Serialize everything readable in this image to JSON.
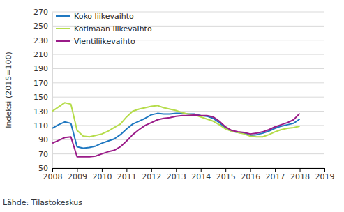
{
  "chart_data": {
    "type": "line",
    "y_label": "Indeksi (2015=100)",
    "source": "Lähde: Tilastokeskus",
    "x": [
      2008,
      2008.25,
      2008.5,
      2008.75,
      2009,
      2009.25,
      2009.5,
      2009.75,
      2010,
      2010.25,
      2010.5,
      2010.75,
      2011,
      2011.25,
      2011.5,
      2011.75,
      2012,
      2012.25,
      2012.5,
      2012.75,
      2013,
      2013.25,
      2013.5,
      2013.75,
      2014,
      2014.25,
      2014.5,
      2014.75,
      2015,
      2015.25,
      2015.5,
      2015.75,
      2016,
      2016.25,
      2016.5,
      2016.75,
      2017,
      2017.25,
      2017.5,
      2017.75,
      2018
    ],
    "series": [
      {
        "name": "Koko liikevaihto",
        "color": "#1f78c1",
        "values": [
          106,
          111,
          115,
          113,
          80,
          78,
          79,
          81,
          85,
          88,
          91,
          97,
          105,
          112,
          116,
          120,
          125,
          127,
          126,
          126,
          127,
          127,
          126,
          126,
          124,
          123,
          120,
          114,
          106,
          102,
          100,
          99,
          96,
          97,
          99,
          102,
          106,
          109,
          111,
          113,
          119
        ]
      },
      {
        "name": "Kotimaan liikevaihto",
        "color": "#b5dc4a",
        "values": [
          130,
          136,
          142,
          140,
          103,
          95,
          94,
          96,
          98,
          102,
          107,
          112,
          122,
          130,
          133,
          135,
          137,
          138,
          135,
          133,
          131,
          128,
          126,
          125,
          122,
          119,
          116,
          111,
          105,
          102,
          100,
          98,
          95,
          94,
          94,
          97,
          101,
          104,
          106,
          107,
          109
        ]
      },
      {
        "name": "Vientiliikevaihto",
        "color": "#9a1b88",
        "values": [
          85,
          89,
          93,
          94,
          66,
          66,
          66,
          67,
          70,
          73,
          75,
          80,
          88,
          97,
          104,
          110,
          114,
          118,
          120,
          121,
          123,
          124,
          124,
          125,
          124,
          124,
          122,
          116,
          108,
          103,
          101,
          100,
          98,
          99,
          101,
          104,
          108,
          111,
          114,
          118,
          127
        ]
      }
    ],
    "xlim": [
      2008,
      2019
    ],
    "xticks": [
      2008,
      2009,
      2010,
      2011,
      2012,
      2013,
      2014,
      2015,
      2016,
      2017,
      2018,
      2019
    ],
    "ylim": [
      50,
      270
    ],
    "yticks": [
      50,
      70,
      90,
      110,
      130,
      150,
      170,
      190,
      210,
      230,
      250,
      270
    ],
    "grid": true,
    "legend": "upper left"
  }
}
